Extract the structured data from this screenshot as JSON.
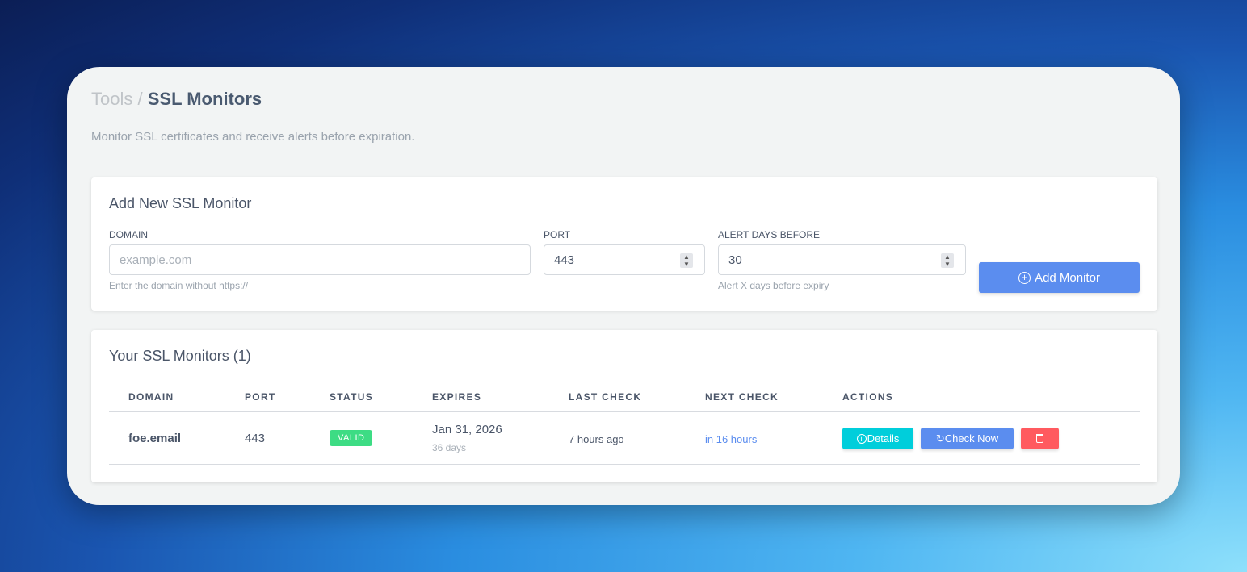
{
  "breadcrumb": {
    "parent": "Tools",
    "separator": "/",
    "current": "SSL Monitors"
  },
  "subtitle": "Monitor SSL certificates and receive alerts before expiration.",
  "add_form": {
    "title": "Add New SSL Monitor",
    "domain": {
      "label": "DOMAIN",
      "placeholder": "example.com",
      "value": "",
      "hint": "Enter the domain without https://"
    },
    "port": {
      "label": "PORT",
      "value": "443"
    },
    "alert_days": {
      "label": "ALERT DAYS BEFORE",
      "value": "30",
      "hint": "Alert X days before expiry"
    },
    "submit_label": "Add Monitor"
  },
  "monitors": {
    "title": "Your SSL Monitors (1)",
    "columns": [
      "DOMAIN",
      "PORT",
      "STATUS",
      "EXPIRES",
      "LAST CHECK",
      "NEXT CHECK",
      "ACTIONS"
    ],
    "rows": [
      {
        "domain": "foe.email",
        "port": "443",
        "status": "VALID",
        "expires": "Jan 31, 2026",
        "expires_in": "36 days",
        "last_check": "7 hours ago",
        "next_check": "in 16 hours",
        "details_label": "Details",
        "check_label": "Check Now"
      }
    ]
  },
  "colors": {
    "primary": "#5b8def",
    "info": "#00cedb",
    "danger": "#ff5a5f",
    "success": "#3ddc84"
  }
}
